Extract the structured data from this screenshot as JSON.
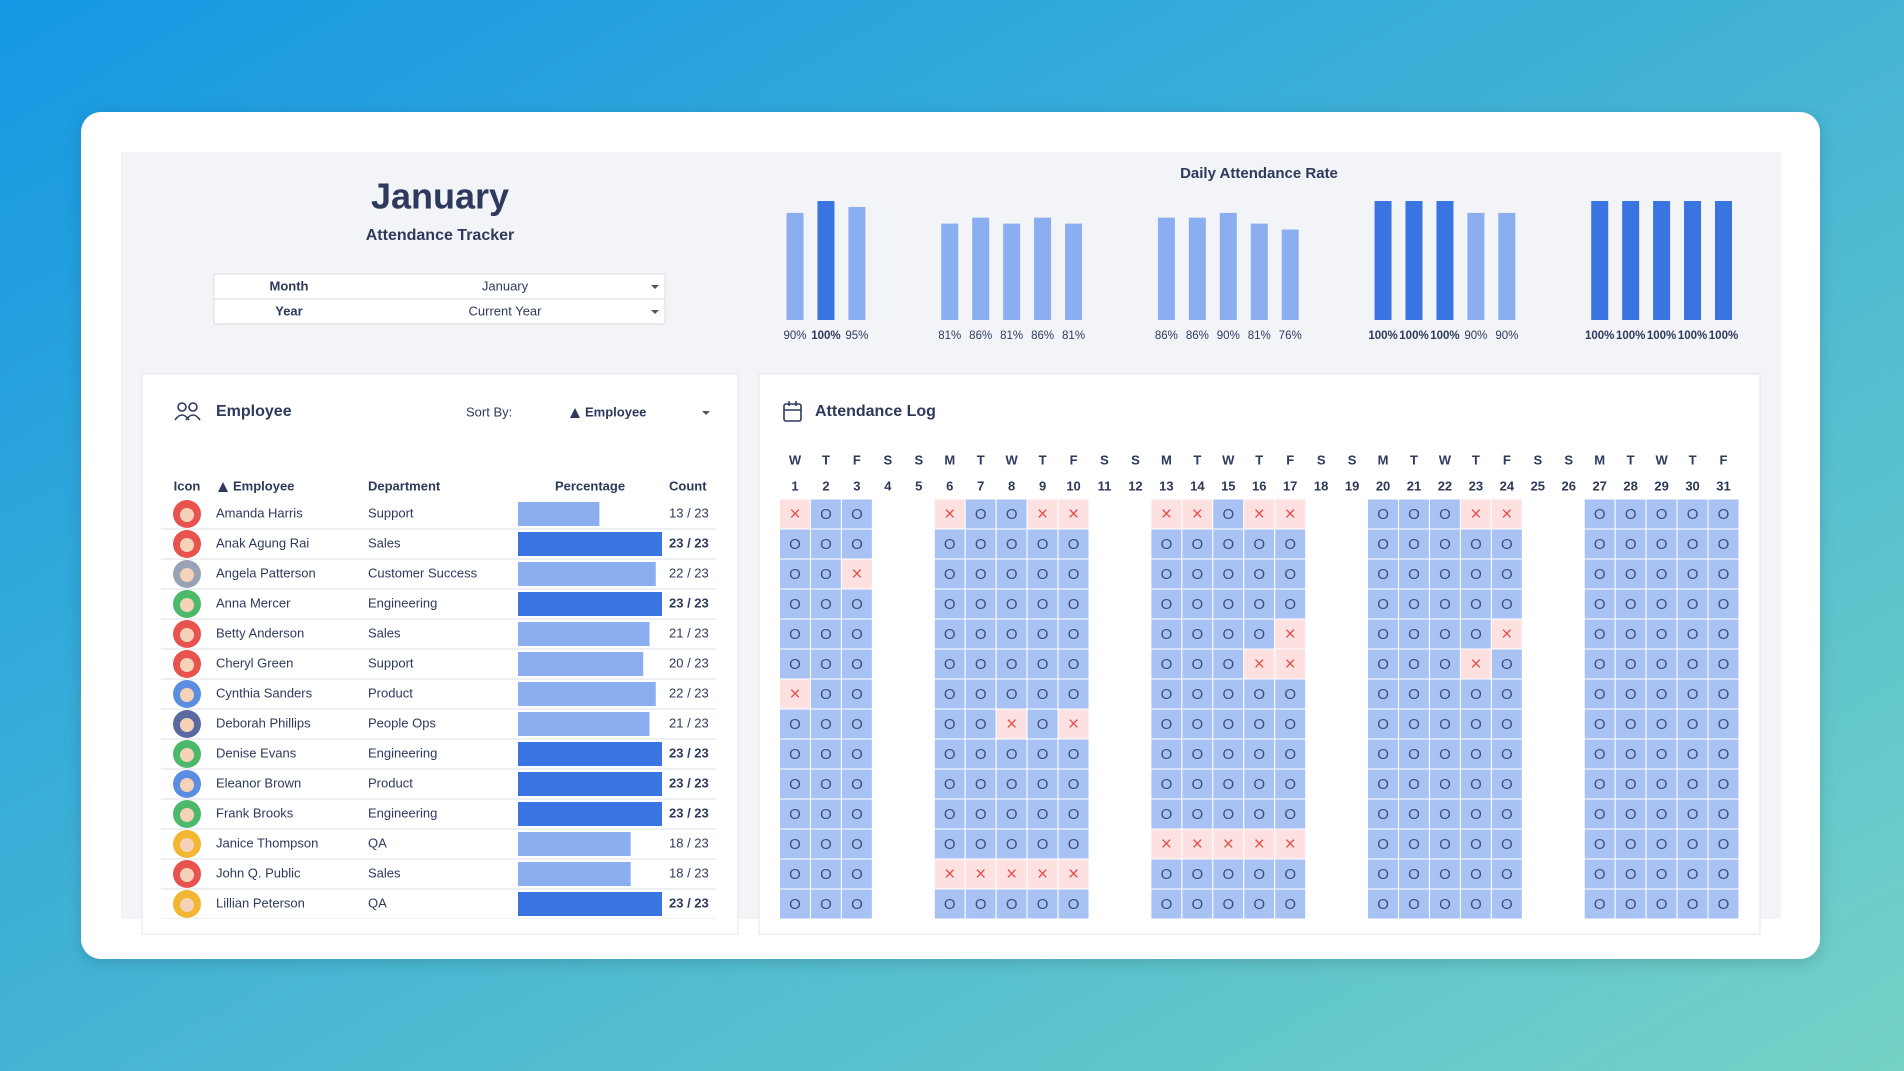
{
  "header": {
    "title": "January",
    "subtitle": "Attendance Tracker"
  },
  "filters": [
    {
      "label": "Month",
      "value": "January"
    },
    {
      "label": "Year",
      "value": "Current Year"
    }
  ],
  "chart_data": {
    "type": "bar",
    "title": "Daily Attendance Rate",
    "values": [
      90,
      100,
      95,
      null,
      null,
      81,
      86,
      81,
      86,
      81,
      null,
      null,
      86,
      86,
      90,
      81,
      76,
      null,
      null,
      100,
      100,
      100,
      90,
      90,
      null,
      null,
      100,
      100,
      100,
      100,
      100
    ],
    "value_labels": [
      "90%",
      "100%",
      "95%",
      null,
      null,
      "81%",
      "86%",
      "81%",
      "86%",
      "81%",
      null,
      null,
      "86%",
      "86%",
      "90%",
      "81%",
      "76%",
      null,
      null,
      "100%",
      "100%",
      "100%",
      "90%",
      "90%",
      null,
      null,
      "100%",
      "100%",
      "100%",
      "100%",
      "100%"
    ],
    "color": "#8aaef0",
    "full_color": "#3a74e0",
    "ylim": [
      0,
      100
    ]
  },
  "employee_panel": {
    "title": "Employee",
    "sort_label": "Sort By:",
    "sort_value": "Employee",
    "columns": [
      "Icon",
      "Employee",
      "Department",
      "Percentage",
      "Count"
    ],
    "rows": [
      {
        "name": "Amanda Harris",
        "department": "Support",
        "present": 13,
        "total": 23,
        "count": "13 / 23"
      },
      {
        "name": "Anak Agung Rai",
        "department": "Sales",
        "present": 23,
        "total": 23,
        "count": "23 / 23"
      },
      {
        "name": "Angela Patterson",
        "department": "Customer Success",
        "present": 22,
        "total": 23,
        "count": "22 / 23"
      },
      {
        "name": "Anna Mercer",
        "department": "Engineering",
        "present": 23,
        "total": 23,
        "count": "23 / 23"
      },
      {
        "name": "Betty Anderson",
        "department": "Sales",
        "present": 21,
        "total": 23,
        "count": "21 / 23"
      },
      {
        "name": "Cheryl Green",
        "department": "Support",
        "present": 20,
        "total": 23,
        "count": "20 / 23"
      },
      {
        "name": "Cynthia Sanders",
        "department": "Product",
        "present": 22,
        "total": 23,
        "count": "22 / 23"
      },
      {
        "name": "Deborah Phillips",
        "department": "People Ops",
        "present": 21,
        "total": 23,
        "count": "21 / 23"
      },
      {
        "name": "Denise Evans",
        "department": "Engineering",
        "present": 23,
        "total": 23,
        "count": "23 / 23"
      },
      {
        "name": "Eleanor Brown",
        "department": "Product",
        "present": 23,
        "total": 23,
        "count": "23 / 23"
      },
      {
        "name": "Frank Brooks",
        "department": "Engineering",
        "present": 23,
        "total": 23,
        "count": "23 / 23"
      },
      {
        "name": "Janice Thompson",
        "department": "QA",
        "present": 18,
        "total": 23,
        "count": "18 / 23"
      },
      {
        "name": "John Q. Public",
        "department": "Sales",
        "present": 18,
        "total": 23,
        "count": "18 / 23"
      },
      {
        "name": "Lillian Peterson",
        "department": "QA",
        "present": 23,
        "total": 23,
        "count": "23 / 23"
      }
    ]
  },
  "attendance_log": {
    "title": "Attendance Log",
    "weekdays": [
      "W",
      "T",
      "F",
      "S",
      "S",
      "M",
      "T",
      "W",
      "T",
      "F",
      "S",
      "S",
      "M",
      "T",
      "W",
      "T",
      "F",
      "S",
      "S",
      "M",
      "T",
      "W",
      "T",
      "F",
      "S",
      "S",
      "M",
      "T",
      "W",
      "T",
      "F"
    ],
    "days": [
      1,
      2,
      3,
      4,
      5,
      6,
      7,
      8,
      9,
      10,
      11,
      12,
      13,
      14,
      15,
      16,
      17,
      18,
      19,
      20,
      21,
      22,
      23,
      24,
      25,
      26,
      27,
      28,
      29,
      30,
      31
    ],
    "rows": [
      [
        "×",
        "O",
        "O",
        null,
        null,
        "×",
        "O",
        "O",
        "×",
        "×",
        null,
        null,
        "×",
        "×",
        "O",
        "×",
        "×",
        null,
        null,
        "O",
        "O",
        "O",
        "×",
        "×",
        null,
        null,
        "O",
        "O",
        "O",
        "O",
        "O"
      ],
      [
        "O",
        "O",
        "O",
        null,
        null,
        "O",
        "O",
        "O",
        "O",
        "O",
        null,
        null,
        "O",
        "O",
        "O",
        "O",
        "O",
        null,
        null,
        "O",
        "O",
        "O",
        "O",
        "O",
        null,
        null,
        "O",
        "O",
        "O",
        "O",
        "O"
      ],
      [
        "O",
        "O",
        "×",
        null,
        null,
        "O",
        "O",
        "O",
        "O",
        "O",
        null,
        null,
        "O",
        "O",
        "O",
        "O",
        "O",
        null,
        null,
        "O",
        "O",
        "O",
        "O",
        "O",
        null,
        null,
        "O",
        "O",
        "O",
        "O",
        "O"
      ],
      [
        "O",
        "O",
        "O",
        null,
        null,
        "O",
        "O",
        "O",
        "O",
        "O",
        null,
        null,
        "O",
        "O",
        "O",
        "O",
        "O",
        null,
        null,
        "O",
        "O",
        "O",
        "O",
        "O",
        null,
        null,
        "O",
        "O",
        "O",
        "O",
        "O"
      ],
      [
        "O",
        "O",
        "O",
        null,
        null,
        "O",
        "O",
        "O",
        "O",
        "O",
        null,
        null,
        "O",
        "O",
        "O",
        "O",
        "×",
        null,
        null,
        "O",
        "O",
        "O",
        "O",
        "×",
        null,
        null,
        "O",
        "O",
        "O",
        "O",
        "O"
      ],
      [
        "O",
        "O",
        "O",
        null,
        null,
        "O",
        "O",
        "O",
        "O",
        "O",
        null,
        null,
        "O",
        "O",
        "O",
        "×",
        "×",
        null,
        null,
        "O",
        "O",
        "O",
        "×",
        "O",
        null,
        null,
        "O",
        "O",
        "O",
        "O",
        "O"
      ],
      [
        "×",
        "O",
        "O",
        null,
        null,
        "O",
        "O",
        "O",
        "O",
        "O",
        null,
        null,
        "O",
        "O",
        "O",
        "O",
        "O",
        null,
        null,
        "O",
        "O",
        "O",
        "O",
        "O",
        null,
        null,
        "O",
        "O",
        "O",
        "O",
        "O"
      ],
      [
        "O",
        "O",
        "O",
        null,
        null,
        "O",
        "O",
        "×",
        "O",
        "×",
        null,
        null,
        "O",
        "O",
        "O",
        "O",
        "O",
        null,
        null,
        "O",
        "O",
        "O",
        "O",
        "O",
        null,
        null,
        "O",
        "O",
        "O",
        "O",
        "O"
      ],
      [
        "O",
        "O",
        "O",
        null,
        null,
        "O",
        "O",
        "O",
        "O",
        "O",
        null,
        null,
        "O",
        "O",
        "O",
        "O",
        "O",
        null,
        null,
        "O",
        "O",
        "O",
        "O",
        "O",
        null,
        null,
        "O",
        "O",
        "O",
        "O",
        "O"
      ],
      [
        "O",
        "O",
        "O",
        null,
        null,
        "O",
        "O",
        "O",
        "O",
        "O",
        null,
        null,
        "O",
        "O",
        "O",
        "O",
        "O",
        null,
        null,
        "O",
        "O",
        "O",
        "O",
        "O",
        null,
        null,
        "O",
        "O",
        "O",
        "O",
        "O"
      ],
      [
        "O",
        "O",
        "O",
        null,
        null,
        "O",
        "O",
        "O",
        "O",
        "O",
        null,
        null,
        "O",
        "O",
        "O",
        "O",
        "O",
        null,
        null,
        "O",
        "O",
        "O",
        "O",
        "O",
        null,
        null,
        "O",
        "O",
        "O",
        "O",
        "O"
      ],
      [
        "O",
        "O",
        "O",
        null,
        null,
        "O",
        "O",
        "O",
        "O",
        "O",
        null,
        null,
        "×",
        "×",
        "×",
        "×",
        "×",
        null,
        null,
        "O",
        "O",
        "O",
        "O",
        "O",
        null,
        null,
        "O",
        "O",
        "O",
        "O",
        "O"
      ],
      [
        "O",
        "O",
        "O",
        null,
        null,
        "×",
        "×",
        "×",
        "×",
        "×",
        null,
        null,
        "O",
        "O",
        "O",
        "O",
        "O",
        null,
        null,
        "O",
        "O",
        "O",
        "O",
        "O",
        null,
        null,
        "O",
        "O",
        "O",
        "O",
        "O"
      ],
      [
        "O",
        "O",
        "O",
        null,
        null,
        "O",
        "O",
        "O",
        "O",
        "O",
        null,
        null,
        "O",
        "O",
        "O",
        "O",
        "O",
        null,
        null,
        "O",
        "O",
        "O",
        "O",
        "O",
        null,
        null,
        "O",
        "O",
        "O",
        "O",
        "O"
      ]
    ]
  }
}
